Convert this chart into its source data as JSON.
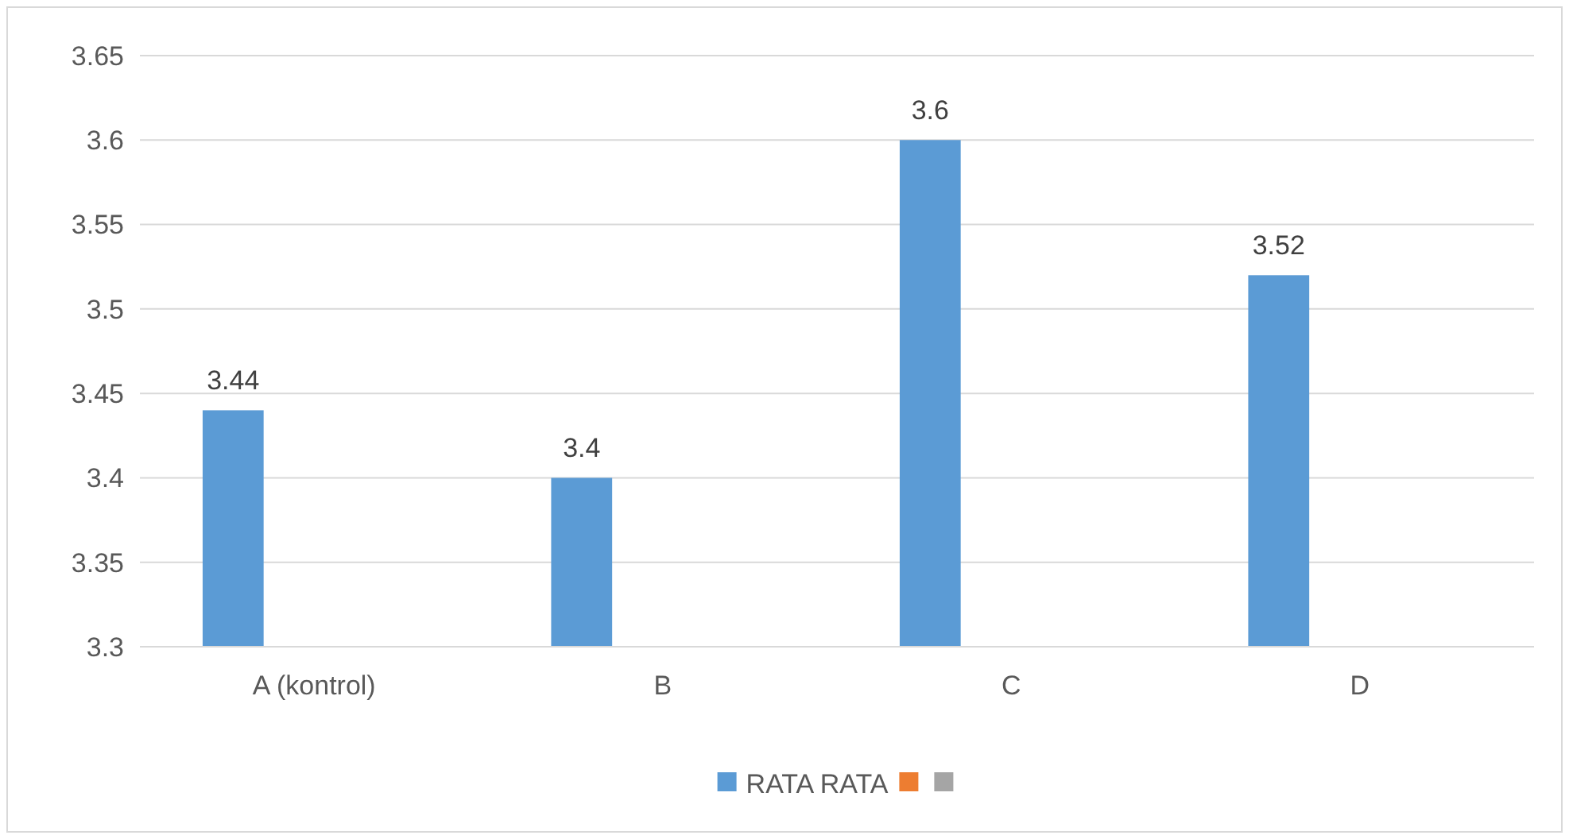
{
  "chart_data": {
    "type": "bar",
    "categories": [
      "A (kontrol)",
      "B",
      "C",
      "D"
    ],
    "series": [
      {
        "name": "RATA RATA",
        "color": "#5b9bd5",
        "values": [
          3.44,
          3.4,
          3.6,
          3.52
        ]
      },
      {
        "color": "#ed7d31",
        "values": [
          null,
          null,
          null,
          null
        ]
      },
      {
        "color": "#a5a5a5",
        "values": [
          null,
          null,
          null,
          null
        ]
      }
    ],
    "ylim": [
      3.3,
      3.65
    ],
    "yticks": [
      3.3,
      3.35,
      3.4,
      3.45,
      3.5,
      3.55,
      3.6,
      3.65
    ],
    "grid": "y",
    "legend": "bottom",
    "data_labels": true
  }
}
